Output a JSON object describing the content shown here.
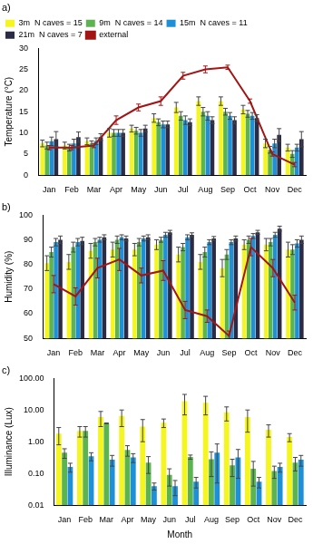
{
  "chart_data": [
    {
      "type": "bar",
      "title": "a)",
      "y_label": "Temperature (°C)",
      "legend": "top-left",
      "grid": false,
      "categories": [
        "Jan",
        "Feb",
        "Mar",
        "Apr",
        "May",
        "Jun",
        "Jul",
        "Aug",
        "Sep",
        "Oct",
        "Nov",
        "Dec"
      ],
      "ylim": [
        0,
        30
      ],
      "yticks": [
        0,
        5,
        10,
        15,
        20,
        25,
        30
      ],
      "series": [
        {
          "name": "3m  N caves = 15",
          "color": "#f5f51f",
          "values": [
            7.5,
            7,
            8,
            10,
            11,
            13.5,
            16,
            17.5,
            17.5,
            15.5,
            7.5,
            6.5
          ],
          "errors": [
            0.8,
            0.8,
            0.8,
            1,
            0.8,
            1,
            1.2,
            1,
            1,
            1,
            1,
            0.8
          ]
        },
        {
          "name": "9m  N caves = 14",
          "color": "#5bb450",
          "values": [
            7,
            6.5,
            7.5,
            10,
            10.5,
            12.5,
            14,
            15,
            15,
            14.5,
            6,
            5
          ],
          "errors": [
            0.8,
            0.8,
            0.6,
            0.8,
            0.8,
            0.8,
            1,
            1,
            0.8,
            0.8,
            0.8,
            0.8
          ]
        },
        {
          "name": "15m  N caves = 11",
          "color": "#1e90d8",
          "values": [
            8,
            7.5,
            8,
            10,
            10,
            12,
            13,
            14,
            14,
            14,
            7.5,
            6.5
          ],
          "errors": [
            1,
            1,
            0.8,
            0.8,
            0.8,
            0.8,
            1,
            1,
            0.8,
            0.8,
            1,
            0.8
          ]
        },
        {
          "name": "21m  N caves = 7",
          "color": "#2b2b45",
          "values": [
            8.5,
            9,
            9,
            10,
            11,
            12,
            12.5,
            13,
            13,
            13.5,
            9.5,
            8.5
          ],
          "errors": [
            1.8,
            1.2,
            0.8,
            0.8,
            0.8,
            0.8,
            0.8,
            0.8,
            0.8,
            0.8,
            1.5,
            1.8
          ]
        },
        {
          "name": "external",
          "type": "line",
          "color": "#a31515",
          "values": [
            6.5,
            6.5,
            7,
            13,
            16,
            17.5,
            23.5,
            25,
            25.5,
            17.5,
            5,
            2.5
          ],
          "errors": [
            0.5,
            0.5,
            0.5,
            1,
            0.8,
            1,
            0.8,
            0.8,
            0.5,
            0.5,
            0.5,
            0.5
          ]
        }
      ]
    },
    {
      "type": "bar",
      "title": "b)",
      "y_label": "Humidity (%)",
      "grid": false,
      "categories": [
        "Jan",
        "Feb",
        "Mar",
        "Apr",
        "May",
        "Jun",
        "Jul",
        "Aug",
        "Sep",
        "Oct",
        "Nov",
        "Dec"
      ],
      "ylim": [
        50,
        100
      ],
      "yticks": [
        50,
        60,
        70,
        80,
        90,
        100
      ],
      "series": [
        {
          "color": "#f5f51f",
          "values": [
            80.5,
            81,
            85.5,
            86,
            86,
            88,
            84,
            81,
            78.5,
            88,
            88,
            86
          ],
          "errors": [
            3,
            3,
            3,
            3,
            2.5,
            2,
            3,
            3,
            3.5,
            2,
            2.5,
            3
          ]
        },
        {
          "color": "#5bb450",
          "values": [
            85,
            87,
            89,
            90,
            89,
            90,
            87,
            85,
            84,
            90,
            89,
            86
          ],
          "errors": [
            2,
            2,
            1.5,
            1.5,
            1.5,
            1,
            1.5,
            2,
            2,
            1.5,
            1.5,
            2
          ]
        },
        {
          "color": "#1e90d8",
          "values": [
            89,
            89,
            90,
            91,
            90.5,
            92,
            91,
            89,
            89,
            91.5,
            92,
            88.5
          ],
          "errors": [
            1.5,
            1.5,
            1,
            1,
            1,
            1,
            1,
            1,
            1,
            1,
            1,
            1.5
          ]
        },
        {
          "color": "#2b2b45",
          "values": [
            90,
            89.5,
            91,
            90.5,
            91,
            93,
            92,
            90.5,
            90.5,
            93,
            94.5,
            90
          ],
          "errors": [
            1.5,
            1.5,
            1,
            1,
            1,
            0.8,
            0.8,
            0.8,
            1,
            0.8,
            1,
            1.5
          ]
        },
        {
          "type": "line",
          "color": "#a31515",
          "values": [
            72,
            67,
            78.5,
            82,
            75.5,
            77.5,
            61.5,
            59,
            51,
            87,
            78.5,
            64.5
          ],
          "errors": [
            3.5,
            3.5,
            4,
            4.5,
            3,
            4,
            3.5,
            2.5,
            2,
            3.5,
            3.5,
            3
          ]
        }
      ]
    },
    {
      "type": "bar",
      "title": "c)",
      "y_label": "Illuminance (Lux)",
      "x_label": "Month",
      "log": "y",
      "grid": false,
      "categories": [
        "Jan",
        "Feb",
        "Mar",
        "Apr",
        "May",
        "Jun",
        "Jul",
        "Aug",
        "Sep",
        "Oct",
        "Nov",
        "Dec"
      ],
      "ylim": [
        0.01,
        100
      ],
      "yticks": [
        0.01,
        {
          "value": 0.1,
          "label": "0.10"
        },
        {
          "value": 1,
          "label": "1.00"
        },
        {
          "value": 10,
          "label": "10.00"
        },
        {
          "value": 100,
          "label": "100.00"
        }
      ],
      "series": [
        {
          "color": "#f5f51f",
          "values": [
            1.8,
            2.2,
            6,
            6.5,
            3,
            4,
            19,
            17,
            8.5,
            6,
            2.4,
            1.4
          ],
          "errors": [
            1,
            0.8,
            3,
            3.5,
            2,
            1.2,
            12,
            10,
            4,
            4,
            1,
            0.4
          ]
        },
        {
          "color": "#5bb450",
          "values": [
            0.45,
            2.2,
            3.8,
            0.55,
            0.22,
            0.09,
            0.33,
            0.28,
            0.18,
            0.14,
            0.12,
            0.22
          ],
          "errors": [
            0.15,
            0.8,
            0.1,
            0.2,
            0.12,
            0.05,
            0.05,
            0.2,
            0.1,
            0.1,
            0.05,
            0.1
          ]
        },
        {
          "color": "#1e90d8",
          "values": [
            0.16,
            0.35,
            0.27,
            0.32,
            0.04,
            0.04,
            0.055,
            0.45,
            0.32,
            0.055,
            0.16,
            0.27
          ],
          "errors": [
            0.05,
            0.1,
            0.1,
            0.1,
            0.01,
            0.02,
            0.02,
            0.4,
            0.25,
            0.02,
            0.05,
            0.1
          ]
        }
      ]
    }
  ]
}
